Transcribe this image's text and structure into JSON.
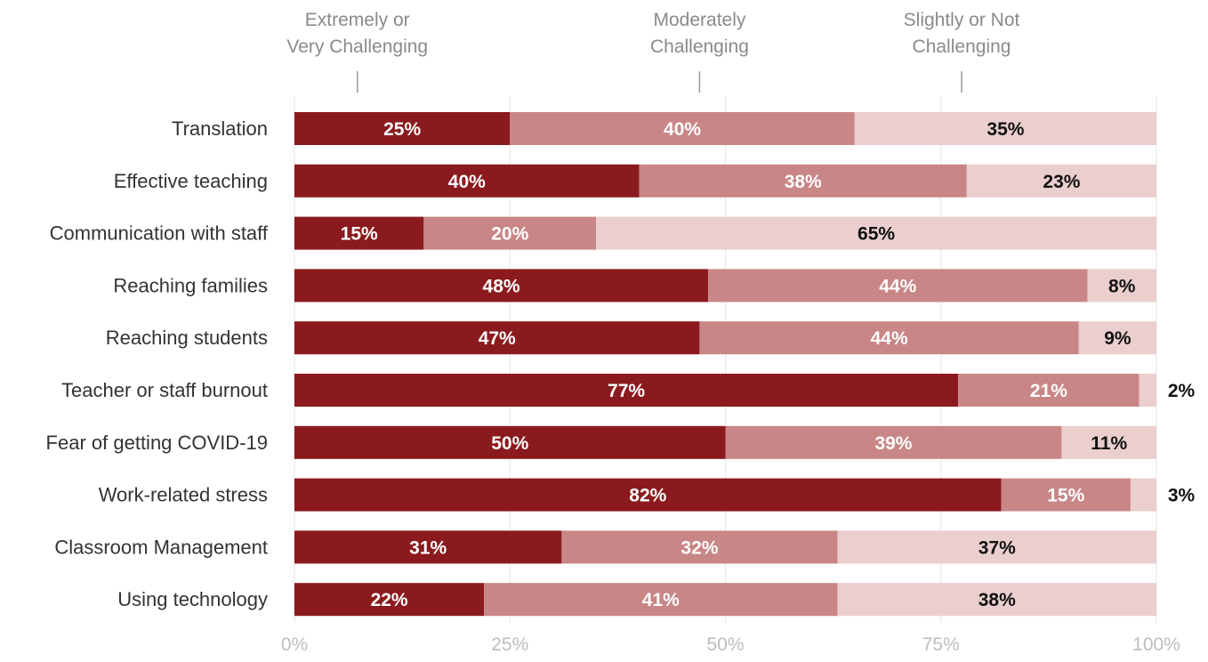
{
  "chart_data": {
    "type": "bar",
    "orientation": "horizontal",
    "stacked": true,
    "xlim": [
      0,
      100
    ],
    "x_ticks": [
      "0%",
      "25%",
      "50%",
      "75%",
      "100%"
    ],
    "grid": true,
    "categories": [
      "Translation",
      "Effective teaching",
      "Communication with staff",
      "Reaching families",
      "Reaching students",
      "Teacher or staff burnout",
      "Fear of getting COVID-19",
      "Work-related stress",
      "Classroom Management",
      "Using technology"
    ],
    "series": [
      {
        "name": "Extremely or Very Challenging",
        "name_lines": [
          "Extremely or",
          "Very Challenging"
        ],
        "color": "#8b1a1e",
        "label_color": "#ffffff",
        "values": [
          25,
          40,
          15,
          48,
          47,
          77,
          50,
          82,
          31,
          22
        ],
        "labels": [
          "25%",
          "40%",
          "15%",
          "48%",
          "47%",
          "77%",
          "50%",
          "82%",
          "31%",
          "22%"
        ]
      },
      {
        "name": "Moderately Challenging",
        "name_lines": [
          "Moderately",
          "Challenging"
        ],
        "color": "#c98686",
        "label_color": "#ffffff",
        "values": [
          40,
          38,
          20,
          44,
          44,
          21,
          39,
          15,
          32,
          41
        ],
        "labels": [
          "40%",
          "38%",
          "20%",
          "44%",
          "44%",
          "21%",
          "39%",
          "15%",
          "32%",
          "41%"
        ]
      },
      {
        "name": "Slightly or Not Challenging",
        "name_lines": [
          "Slightly or Not",
          "Challenging"
        ],
        "color": "#ebcece",
        "label_color": "#111111",
        "values": [
          35,
          23,
          65,
          8,
          9,
          2,
          11,
          3,
          37,
          38
        ],
        "labels": [
          "35%",
          "23%",
          "65%",
          "8%",
          "9%",
          "2%",
          "11%",
          "3%",
          "37%",
          "38%"
        ]
      }
    ],
    "legend_position": "top",
    "legend_anchor_values": [
      7.3,
      47,
      77.4
    ]
  }
}
